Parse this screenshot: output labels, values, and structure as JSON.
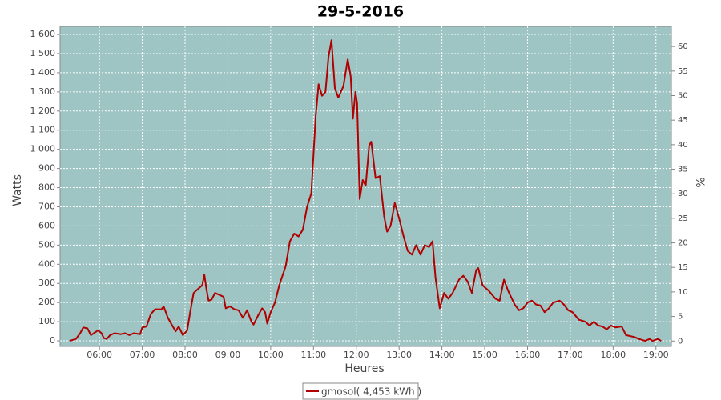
{
  "chart_data": {
    "type": "line",
    "title": "29-5-2016",
    "x_label": "Heures",
    "y_label": "Watts",
    "y2_label": "%",
    "x": [
      5.3,
      5.45,
      5.55,
      5.62,
      5.72,
      5.8,
      5.9,
      5.97,
      6.05,
      6.1,
      6.17,
      6.25,
      6.35,
      6.5,
      6.6,
      6.7,
      6.8,
      6.95,
      7.0,
      7.1,
      7.2,
      7.3,
      7.45,
      7.5,
      7.6,
      7.7,
      7.78,
      7.85,
      7.95,
      8.05,
      8.12,
      8.2,
      8.3,
      8.4,
      8.45,
      8.5,
      8.55,
      8.62,
      8.7,
      8.8,
      8.9,
      8.95,
      9.05,
      9.15,
      9.25,
      9.35,
      9.45,
      9.55,
      9.6,
      9.7,
      9.8,
      9.87,
      9.92,
      10.0,
      10.1,
      10.2,
      10.35,
      10.45,
      10.55,
      10.65,
      10.75,
      10.85,
      10.95,
      11.05,
      11.12,
      11.2,
      11.28,
      11.35,
      11.42,
      11.5,
      11.58,
      11.7,
      11.8,
      11.87,
      11.92,
      11.98,
      12.02,
      12.08,
      12.15,
      12.22,
      12.3,
      12.35,
      12.45,
      12.55,
      12.65,
      12.72,
      12.8,
      12.9,
      13.0,
      13.1,
      13.2,
      13.3,
      13.4,
      13.5,
      13.6,
      13.7,
      13.78,
      13.85,
      13.95,
      14.05,
      14.15,
      14.25,
      14.4,
      14.5,
      14.6,
      14.7,
      14.8,
      14.85,
      14.95,
      15.1,
      15.25,
      15.35,
      15.45,
      15.55,
      15.7,
      15.8,
      15.9,
      16.0,
      16.1,
      16.2,
      16.3,
      16.4,
      16.5,
      16.6,
      16.75,
      16.85,
      16.95,
      17.05,
      17.2,
      17.35,
      17.45,
      17.55,
      17.65,
      17.75,
      17.85,
      17.95,
      18.05,
      18.2,
      18.3,
      18.5,
      18.6,
      18.75,
      18.85,
      18.92,
      19.05,
      19.12
    ],
    "series": [
      {
        "name": "gmosol( 4,453 kWh )",
        "color": "#b00000",
        "values": [
          0,
          10,
          40,
          70,
          65,
          30,
          45,
          55,
          40,
          15,
          10,
          30,
          40,
          35,
          40,
          30,
          40,
          35,
          70,
          75,
          140,
          165,
          165,
          180,
          120,
          80,
          50,
          75,
          30,
          55,
          150,
          250,
          270,
          290,
          345,
          270,
          210,
          215,
          250,
          240,
          230,
          170,
          180,
          165,
          160,
          120,
          160,
          100,
          85,
          130,
          170,
          150,
          90,
          150,
          200,
          290,
          390,
          520,
          560,
          545,
          580,
          700,
          770,
          1170,
          1340,
          1280,
          1300,
          1480,
          1570,
          1320,
          1270,
          1330,
          1470,
          1380,
          1160,
          1300,
          1240,
          740,
          840,
          810,
          1020,
          1040,
          850,
          860,
          650,
          570,
          600,
          720,
          640,
          550,
          470,
          450,
          500,
          450,
          500,
          490,
          520,
          330,
          170,
          250,
          220,
          250,
          320,
          340,
          310,
          250,
          370,
          380,
          290,
          260,
          220,
          210,
          320,
          260,
          190,
          160,
          170,
          200,
          210,
          190,
          185,
          150,
          170,
          200,
          210,
          190,
          160,
          150,
          110,
          100,
          80,
          100,
          80,
          75,
          60,
          80,
          70,
          75,
          30,
          20,
          10,
          0,
          10,
          0,
          10,
          0
        ]
      }
    ],
    "xlim": [
      5.08,
      19.36
    ],
    "xticks": [
      {
        "value": 6,
        "label": "06:00"
      },
      {
        "value": 7,
        "label": "07:00"
      },
      {
        "value": 8,
        "label": "08:00"
      },
      {
        "value": 9,
        "label": "09:00"
      },
      {
        "value": 10,
        "label": "10:00"
      },
      {
        "value": 11,
        "label": "11:00"
      },
      {
        "value": 12,
        "label": "12:00"
      },
      {
        "value": 13,
        "label": "13:00"
      },
      {
        "value": 14,
        "label": "14:00"
      },
      {
        "value": 15,
        "label": "15:00"
      },
      {
        "value": 16,
        "label": "16:00"
      },
      {
        "value": 17,
        "label": "17:00"
      },
      {
        "value": 18,
        "label": "18:00"
      },
      {
        "value": 19,
        "label": "19:00"
      }
    ],
    "ylim": [
      -29,
      1642
    ],
    "yticks": [
      0,
      100,
      200,
      300,
      400,
      500,
      600,
      700,
      800,
      900,
      {
        "value": 1000,
        "label": "1 000"
      },
      {
        "value": 1100,
        "label": "1 100"
      },
      {
        "value": 1200,
        "label": "1 200"
      },
      {
        "value": 1300,
        "label": "1 300"
      },
      {
        "value": 1400,
        "label": "1 400"
      },
      {
        "value": 1500,
        "label": "1 500"
      },
      {
        "value": 1600,
        "label": "1 600"
      }
    ],
    "y2lim": [
      -1.1,
      64.1
    ],
    "y2ticks": [
      0,
      5,
      10,
      15,
      20,
      25,
      30,
      35,
      40,
      45,
      50,
      55,
      60
    ],
    "grid": true,
    "background": "#9fc4c4",
    "legend": "bottom"
  }
}
